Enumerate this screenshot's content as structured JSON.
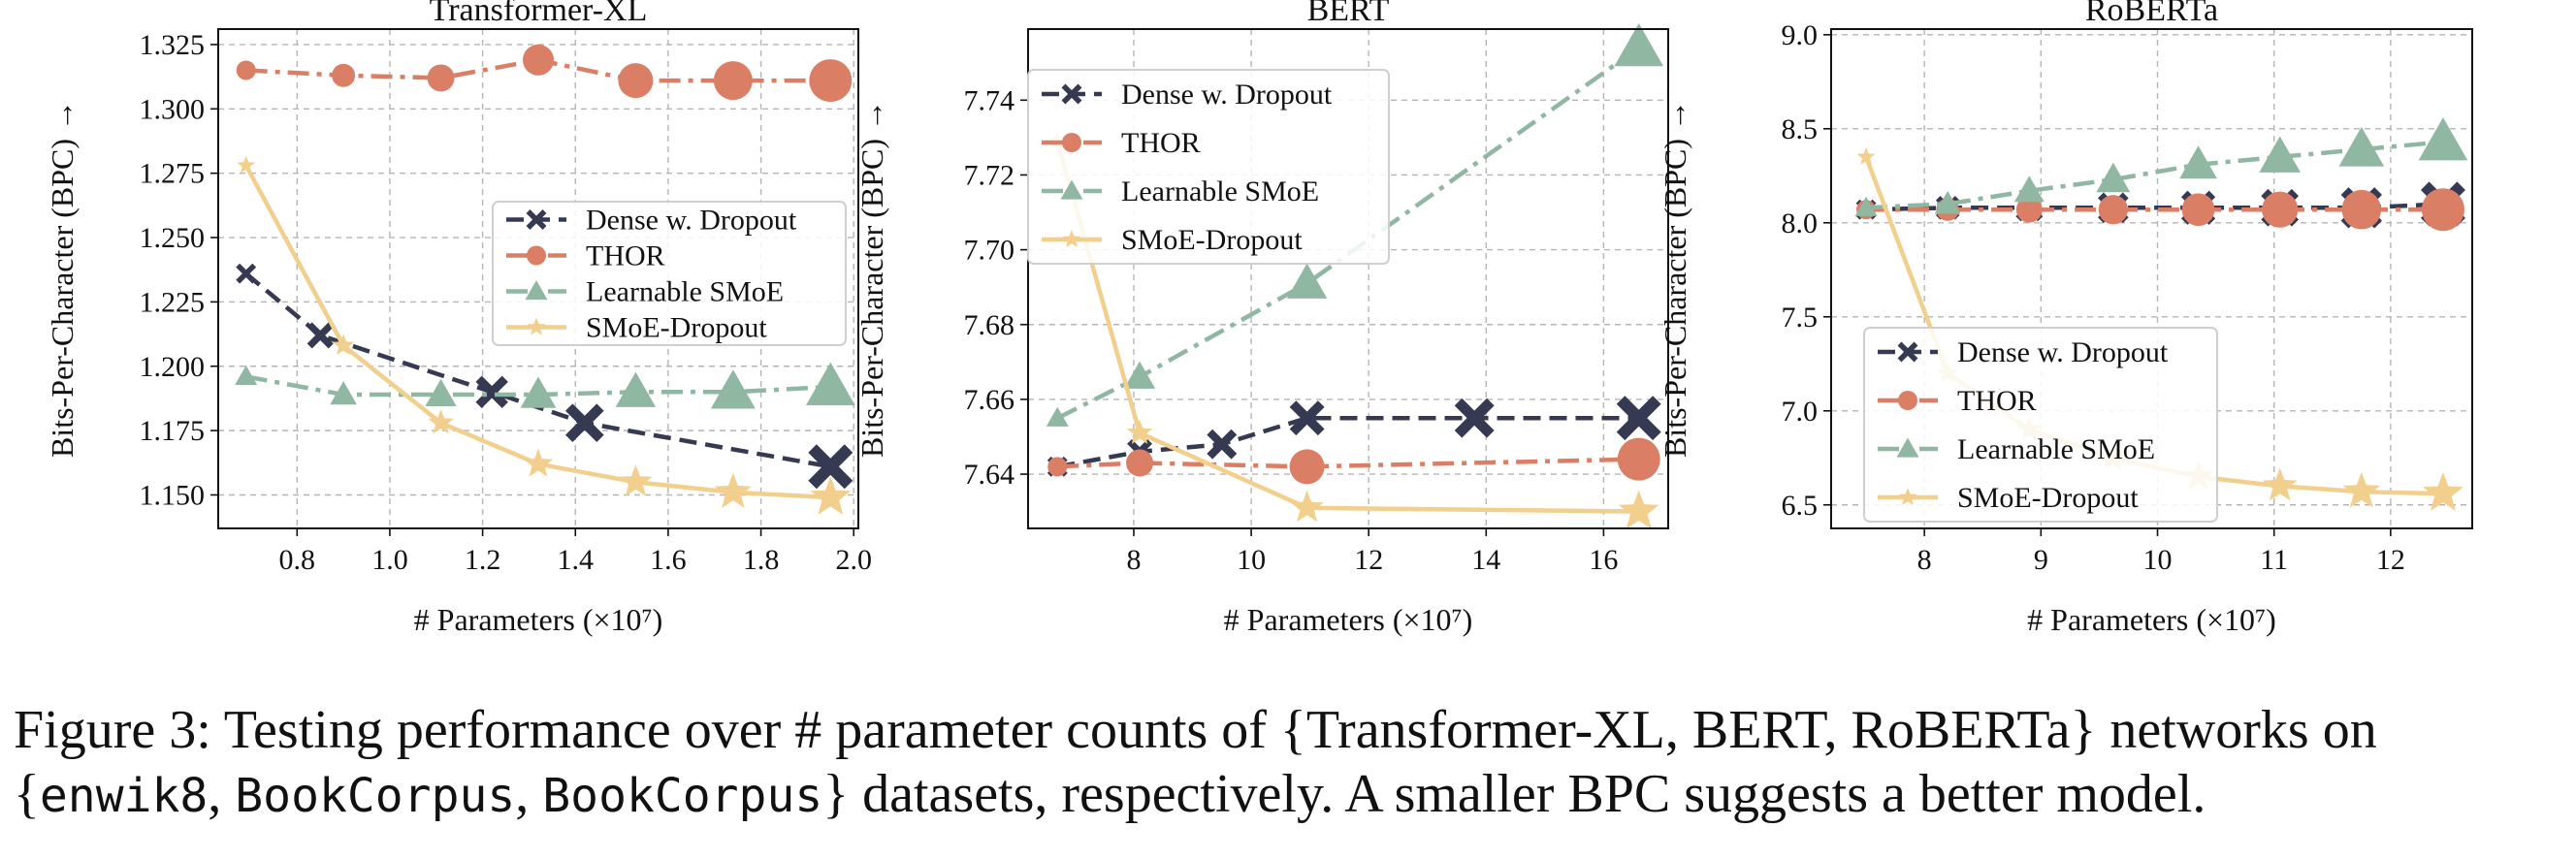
{
  "series_names": [
    "Dense w. Dropout",
    "THOR",
    "Learnable SMoE",
    "SMoE-Dropout"
  ],
  "colors": {
    "Dense w. Dropout": "#353a52",
    "THOR": "#db7e66",
    "Learnable SMoE": "#8fb7a2",
    "SMoE-Dropout": "#f2cf8c"
  },
  "chart_data": [
    {
      "type": "line",
      "title": "Transformer-XL",
      "xlabel": "# Parameters (×10⁷)",
      "ylabel": "Bits-Per-Character (BPC) →",
      "xlim": [
        0.63,
        2.01
      ],
      "ylim": [
        1.137,
        1.331
      ],
      "xticks": [
        0.8,
        1.0,
        1.2,
        1.4,
        1.6,
        1.8,
        2.0
      ],
      "xtick_labels": [
        "0.8",
        "1.0",
        "1.2",
        "1.4",
        "1.6",
        "1.8",
        "2.0"
      ],
      "yticks": [
        1.15,
        1.175,
        1.2,
        1.225,
        1.25,
        1.275,
        1.3,
        1.325
      ],
      "ytick_labels": [
        "1.150",
        "1.175",
        "1.200",
        "1.225",
        "1.250",
        "1.275",
        "1.300",
        "1.325"
      ],
      "grid": true,
      "legend_position": "center-right",
      "series": [
        {
          "name": "Dense w. Dropout",
          "x": [
            0.69,
            0.85,
            1.22,
            1.42,
            1.95
          ],
          "y": [
            1.236,
            1.212,
            1.19,
            1.178,
            1.161
          ]
        },
        {
          "name": "THOR",
          "x": [
            0.69,
            0.9,
            1.11,
            1.32,
            1.53,
            1.74,
            1.95
          ],
          "y": [
            1.315,
            1.313,
            1.312,
            1.319,
            1.311,
            1.311,
            1.311
          ]
        },
        {
          "name": "Learnable SMoE",
          "x": [
            0.69,
            0.9,
            1.11,
            1.32,
            1.53,
            1.74,
            1.95
          ],
          "y": [
            1.196,
            1.189,
            1.189,
            1.189,
            1.19,
            1.19,
            1.192
          ]
        },
        {
          "name": "SMoE-Dropout",
          "x": [
            0.69,
            0.9,
            1.11,
            1.32,
            1.53,
            1.74,
            1.95
          ],
          "y": [
            1.278,
            1.208,
            1.178,
            1.162,
            1.155,
            1.151,
            1.149
          ]
        }
      ]
    },
    {
      "type": "line",
      "title": "BERT",
      "xlabel": "# Parameters (×10⁷)",
      "ylabel": "Bits-Per-Character (BPC) →",
      "xlim": [
        6.2,
        17.1
      ],
      "ylim": [
        7.6255,
        7.759
      ],
      "xticks": [
        8,
        10,
        12,
        14,
        16
      ],
      "xtick_labels": [
        "8",
        "10",
        "12",
        "14",
        "16"
      ],
      "yticks": [
        7.64,
        7.66,
        7.68,
        7.7,
        7.72,
        7.74
      ],
      "ytick_labels": [
        "7.64",
        "7.66",
        "7.68",
        "7.70",
        "7.72",
        "7.74"
      ],
      "grid": true,
      "legend_position": "upper-left",
      "series": [
        {
          "name": "Dense w. Dropout",
          "x": [
            6.7,
            8.1,
            9.5,
            10.95,
            13.8,
            16.6
          ],
          "y": [
            7.642,
            7.646,
            7.648,
            7.655,
            7.655,
            7.655
          ]
        },
        {
          "name": "THOR",
          "x": [
            6.7,
            8.1,
            10.95,
            16.6
          ],
          "y": [
            7.642,
            7.643,
            7.642,
            7.644
          ]
        },
        {
          "name": "Learnable SMoE",
          "x": [
            6.7,
            8.1,
            10.95,
            16.6
          ],
          "y": [
            7.655,
            7.666,
            7.691,
            7.754
          ]
        },
        {
          "name": "SMoE-Dropout",
          "x": [
            6.7,
            8.1,
            10.95,
            16.6
          ],
          "y": [
            7.729,
            7.651,
            7.631,
            7.63
          ]
        }
      ]
    },
    {
      "type": "line",
      "title": "RoBERTa",
      "xlabel": "# Parameters (×10⁷)",
      "ylabel": "Bits-Per-Character (BPC) →",
      "xlim": [
        7.2,
        12.7
      ],
      "ylim": [
        6.375,
        9.03
      ],
      "xticks": [
        8,
        9,
        10,
        11,
        12
      ],
      "xtick_labels": [
        "8",
        "9",
        "10",
        "11",
        "12"
      ],
      "yticks": [
        6.5,
        7.0,
        7.5,
        8.0,
        8.5,
        9.0
      ],
      "ytick_labels": [
        "6.5",
        "7.0",
        "7.5",
        "8.0",
        "8.5",
        "9.0"
      ],
      "grid": true,
      "legend_position": "lower-left",
      "series": [
        {
          "name": "Dense w. Dropout",
          "x": [
            7.5,
            8.2,
            8.9,
            9.62,
            10.35,
            11.05,
            11.75,
            12.45
          ],
          "y": [
            8.07,
            8.08,
            8.08,
            8.08,
            8.08,
            8.08,
            8.08,
            8.1
          ]
        },
        {
          "name": "THOR",
          "x": [
            7.5,
            8.2,
            8.9,
            9.62,
            10.35,
            11.05,
            11.75,
            12.45
          ],
          "y": [
            8.07,
            8.07,
            8.07,
            8.07,
            8.07,
            8.07,
            8.07,
            8.07
          ]
        },
        {
          "name": "Learnable SMoE",
          "x": [
            7.5,
            8.2,
            8.9,
            9.62,
            10.35,
            11.05,
            11.75,
            12.45
          ],
          "y": [
            8.08,
            8.1,
            8.17,
            8.23,
            8.31,
            8.35,
            8.39,
            8.43
          ]
        },
        {
          "name": "SMoE-Dropout",
          "x": [
            7.5,
            8.2,
            8.9,
            9.62,
            10.35,
            11.05,
            11.75,
            12.45
          ],
          "y": [
            8.35,
            7.2,
            6.9,
            6.75,
            6.65,
            6.6,
            6.57,
            6.56
          ]
        }
      ]
    }
  ],
  "caption": {
    "line1": "Figure 3: Testing performance over # parameter counts of {Transformer-XL, BERT, RoBERTa} networks on",
    "line2_open": "{",
    "line2_m1": "enwik8",
    "line2_sep1": ", ",
    "line2_m2": "BookCorpus",
    "line2_sep2": ", ",
    "line2_m3": "BookCorpus",
    "line2_rest": "} datasets, respectively. A smaller BPC suggests a better model."
  }
}
